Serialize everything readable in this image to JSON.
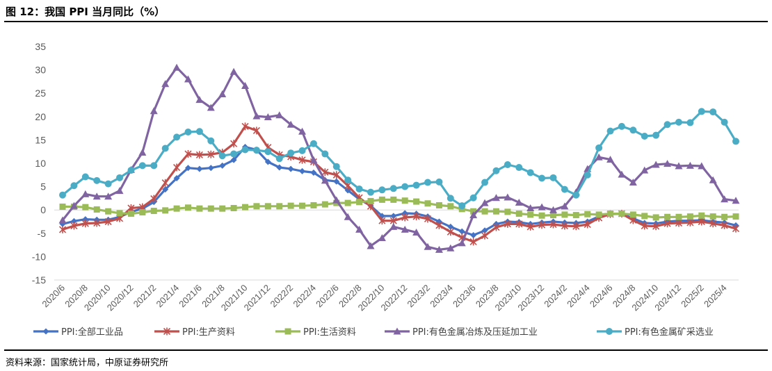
{
  "figure": {
    "title": "图 12：我国 PPI 当月同比（%）",
    "source": "资料来源：国家统计局，中原证券研究所"
  },
  "chart_data": {
    "type": "line",
    "title": "图 12：我国 PPI 当月同比（%）",
    "xlabel": "",
    "ylabel": "",
    "ylim": [
      -15,
      35
    ],
    "yticks": [
      35,
      30,
      25,
      20,
      15,
      10,
      5,
      0,
      -5,
      -10,
      -15
    ],
    "grid": false,
    "legend_position": "bottom",
    "categories": [
      "2020/6",
      "2020/7",
      "2020/8",
      "2020/9",
      "2020/10",
      "2020/11",
      "2020/12",
      "2021/1",
      "2021/2",
      "2021/3",
      "2021/4",
      "2021/5",
      "2021/6",
      "2021/7",
      "2021/8",
      "2021/9",
      "2021/10",
      "2021/11",
      "2021/12",
      "2022/1",
      "2022/2",
      "2022/3",
      "2022/4",
      "2022/5",
      "2022/6",
      "2022/7",
      "2022/8",
      "2022/9",
      "2022/10",
      "2022/11",
      "2022/12",
      "2023/1",
      "2023/2",
      "2023/3",
      "2023/4",
      "2023/5",
      "2023/6",
      "2023/7",
      "2023/8",
      "2023/9",
      "2023/10",
      "2023/11",
      "2023/12",
      "2024/1",
      "2024/2",
      "2024/3",
      "2024/4",
      "2024/5",
      "2024/6",
      "2024/7",
      "2024/8",
      "2024/9",
      "2024/10",
      "2024/11",
      "2024/12",
      "2025/1",
      "2025/2",
      "2025/3",
      "2025/4",
      "2025/5"
    ],
    "x_tick_labels": [
      "2020/6",
      "2020/8",
      "2020/10",
      "2020/12",
      "2021/2",
      "2021/4",
      "2021/6",
      "2021/8",
      "2021/10",
      "2021/12",
      "2022/2",
      "2022/4",
      "2022/6",
      "2022/8",
      "2022/10",
      "2022/12",
      "2023/2",
      "2023/4",
      "2023/6",
      "2023/8",
      "2023/10",
      "2023/12",
      "2024/2",
      "2024/4",
      "2024/6",
      "2024/8",
      "2024/10",
      "2024/12",
      "2025/2",
      "2025/4"
    ],
    "series": [
      {
        "name": "PPI:全部工业品",
        "color": "#4472C4",
        "marker": "diamond",
        "values": [
          -3.0,
          -2.4,
          -2.0,
          -2.1,
          -2.1,
          -1.5,
          -0.4,
          0.3,
          1.7,
          4.4,
          6.8,
          9.0,
          8.8,
          9.0,
          9.5,
          10.7,
          13.5,
          12.9,
          10.3,
          9.1,
          8.8,
          8.3,
          8.0,
          6.4,
          6.1,
          4.2,
          2.3,
          0.9,
          -1.3,
          -1.3,
          -0.7,
          -0.8,
          -1.4,
          -2.5,
          -3.6,
          -4.6,
          -5.4,
          -4.4,
          -3.0,
          -2.5,
          -2.6,
          -3.0,
          -2.7,
          -2.5,
          -2.7,
          -2.8,
          -2.5,
          -1.4,
          -0.8,
          -0.8,
          -1.8,
          -2.8,
          -2.9,
          -2.5,
          -2.3,
          -2.3,
          -2.2,
          -2.5,
          -2.7,
          -3.3
        ]
      },
      {
        "name": "PPI:生产资料",
        "color": "#C0504D",
        "marker": "x",
        "values": [
          -4.2,
          -3.4,
          -2.9,
          -2.8,
          -2.5,
          -1.8,
          0.4,
          0.6,
          2.4,
          5.8,
          9.1,
          12.0,
          11.8,
          11.9,
          12.3,
          14.2,
          17.9,
          17.0,
          13.4,
          11.8,
          11.4,
          10.7,
          10.3,
          8.1,
          7.5,
          5.2,
          2.6,
          0.8,
          -2.3,
          -2.3,
          -1.6,
          -1.4,
          -1.9,
          -3.3,
          -4.7,
          -5.9,
          -6.8,
          -5.5,
          -3.7,
          -3.0,
          -3.0,
          -3.6,
          -3.2,
          -3.1,
          -3.4,
          -3.5,
          -3.1,
          -1.7,
          -0.9,
          -0.8,
          -2.2,
          -3.4,
          -3.5,
          -2.9,
          -2.8,
          -2.7,
          -2.5,
          -2.9,
          -3.3,
          -4.0
        ]
      },
      {
        "name": "PPI:生活资料",
        "color": "#9BBB59",
        "marker": "square",
        "values": [
          0.7,
          0.7,
          0.6,
          0.1,
          -0.3,
          -0.7,
          -0.8,
          -0.5,
          -0.2,
          -0.1,
          0.3,
          0.5,
          0.3,
          0.3,
          0.3,
          0.4,
          0.6,
          0.8,
          0.8,
          0.8,
          0.9,
          0.9,
          1.0,
          1.2,
          1.5,
          1.5,
          1.7,
          1.9,
          2.2,
          2.2,
          2.0,
          1.8,
          1.4,
          1.0,
          0.8,
          0.2,
          -0.3,
          -0.3,
          -0.3,
          -0.4,
          -0.8,
          -1.0,
          -1.2,
          -1.1,
          -1.0,
          -1.1,
          -0.9,
          -1.0,
          -0.8,
          -0.8,
          -1.0,
          -1.3,
          -1.6,
          -1.5,
          -1.5,
          -1.4,
          -1.2,
          -1.4,
          -1.5,
          -1.4
        ]
      },
      {
        "name": "PPI:有色金属冶炼及压延加工业",
        "color": "#8064A2",
        "marker": "triangle",
        "values": [
          -2.2,
          0.9,
          3.4,
          2.9,
          2.9,
          4.1,
          8.6,
          12.3,
          21.2,
          27.0,
          30.5,
          28.0,
          23.6,
          21.9,
          24.8,
          29.6,
          26.6,
          20.1,
          19.9,
          20.3,
          18.3,
          16.8,
          10.7,
          6.3,
          2.1,
          -1.5,
          -4.2,
          -7.7,
          -6.0,
          -3.6,
          -4.2,
          -4.8,
          -7.9,
          -8.5,
          -8.2,
          -7.1,
          -1.1,
          1.5,
          2.6,
          2.7,
          1.6,
          0.4,
          0.6,
          0.0,
          0.8,
          3.8,
          8.8,
          11.3,
          10.8,
          7.6,
          5.9,
          8.5,
          9.7,
          9.9,
          9.4,
          9.5,
          9.4,
          6.4,
          2.3,
          2.0
        ]
      },
      {
        "name": "PPI:有色金属矿采选业",
        "color": "#4BACC6",
        "marker": "circle",
        "values": [
          3.2,
          5.2,
          7.1,
          6.3,
          5.6,
          6.9,
          8.5,
          9.5,
          9.5,
          13.2,
          15.6,
          16.7,
          16.8,
          14.8,
          11.6,
          12.0,
          12.9,
          12.8,
          12.5,
          11.0,
          12.2,
          12.7,
          14.2,
          12.0,
          9.3,
          6.4,
          4.5,
          3.8,
          4.3,
          4.6,
          5.0,
          5.3,
          5.9,
          6.0,
          2.5,
          0.9,
          2.6,
          5.9,
          8.4,
          9.7,
          9.1,
          8.0,
          6.8,
          6.9,
          4.4,
          3.2,
          7.5,
          13.3,
          16.9,
          17.9,
          17.1,
          15.8,
          16.0,
          18.3,
          18.8,
          18.7,
          21.1,
          21.0,
          18.8,
          14.7
        ]
      }
    ]
  }
}
